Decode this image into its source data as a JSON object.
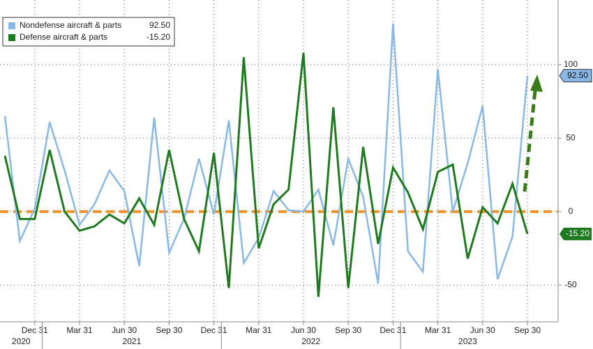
{
  "chart_data": {
    "type": "line",
    "categories": [
      null,
      null,
      "Dec 31",
      null,
      null,
      "Mar 31",
      null,
      null,
      "Jun 30",
      null,
      null,
      "Sep 30",
      null,
      null,
      "Dec 31",
      null,
      null,
      "Mar 31",
      null,
      null,
      "Jun 30",
      null,
      null,
      "Sep 30",
      null,
      null,
      "Dec 31",
      null,
      null,
      "Mar 31",
      null,
      null,
      "Jun 30",
      null,
      null,
      "Sep 30"
    ],
    "x_groups": [
      {
        "label": "2020",
        "count": 3
      },
      {
        "label": "2021",
        "count": 12
      },
      {
        "label": "2022",
        "count": 12
      },
      {
        "label": "2023",
        "count": 9
      }
    ],
    "series": [
      {
        "name": "Nondefense aircraft & parts",
        "color": "#8ab8e6",
        "values": [
          65,
          -20,
          2,
          61,
          28,
          -9,
          5,
          28,
          14,
          -37,
          64,
          -28,
          -5,
          36,
          -2,
          62,
          -35,
          -18,
          14,
          1,
          0,
          15,
          -23,
          36,
          10,
          -49,
          128,
          -27,
          -41,
          97,
          0,
          33,
          72,
          -46,
          -17,
          92.5
        ],
        "value_labels": [
          null,
          null,
          null,
          null,
          null,
          null,
          null,
          null,
          null,
          null,
          null,
          null,
          null,
          null,
          null,
          null,
          null,
          null,
          null,
          null,
          null,
          null,
          null,
          null,
          null,
          null,
          null,
          null,
          null,
          null,
          null,
          null,
          null,
          null,
          null,
          "92.50"
        ]
      },
      {
        "name": "Defense aircraft & parts",
        "color": "#1f7a1f",
        "values": [
          38,
          -5,
          -5,
          42,
          0,
          -13,
          -10,
          -2,
          -8,
          9,
          -9,
          42,
          -5,
          -27,
          40,
          -52,
          105,
          -25,
          5,
          15,
          108,
          -58,
          71,
          -52,
          44,
          -22,
          30,
          13,
          -12,
          27,
          32,
          -32,
          3,
          -8,
          19,
          -15.2
        ],
        "value_labels": [
          null,
          null,
          null,
          null,
          null,
          null,
          null,
          null,
          null,
          null,
          null,
          null,
          null,
          null,
          null,
          null,
          null,
          null,
          null,
          null,
          null,
          null,
          null,
          null,
          null,
          null,
          null,
          null,
          null,
          null,
          null,
          null,
          null,
          null,
          null,
          "-15.20"
        ]
      }
    ],
    "hline": {
      "value": 0,
      "color": "#f0922a"
    },
    "ylim": [
      -75,
      144
    ],
    "yticks": [
      100,
      50,
      0,
      -50
    ],
    "grid": true,
    "legend": "top-left"
  }
}
